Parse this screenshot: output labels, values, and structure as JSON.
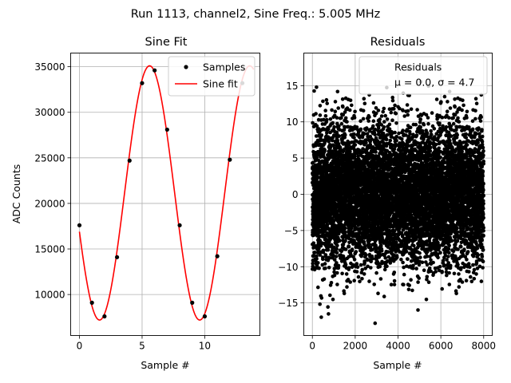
{
  "suptitle": "Run 1113, channel2, Sine Freq.: 5.005 MHz",
  "chart_data": [
    {
      "type": "line",
      "title": "Sine Fit",
      "xlabel": "Sample #",
      "ylabel": "ADC Counts",
      "xlim": [
        -0.7,
        14.4
      ],
      "ylim": [
        5500,
        36500
      ],
      "xticks": [
        0,
        5,
        10
      ],
      "yticks": [
        10000,
        15000,
        20000,
        25000,
        30000,
        35000
      ],
      "grid": true,
      "legend_placement": "top-right",
      "series": [
        {
          "name": "Samples",
          "kind": "points",
          "color": "#000000",
          "x": [
            0,
            1,
            2,
            3,
            4,
            5,
            6,
            7,
            8,
            9,
            10,
            11,
            12,
            13
          ],
          "y": [
            17600,
            9100,
            7600,
            14100,
            24700,
            33200,
            34600,
            28100,
            17600,
            9100,
            7600,
            14200,
            24800,
            33200
          ]
        },
        {
          "name": "Sine fit",
          "kind": "line",
          "color": "#ff0000",
          "model": {
            "offset": 21150,
            "amplitude": 13950,
            "period_samples": 7.992,
            "peak_x": 5.6
          },
          "x_range": [
            0,
            13.9
          ]
        }
      ]
    },
    {
      "type": "scatter",
      "title": "Residuals",
      "xlabel": "Sample #",
      "ylabel": "",
      "xlim": [
        -400,
        8400
      ],
      "ylim": [
        -19.5,
        19.5
      ],
      "xticks": [
        0,
        2000,
        4000,
        6000,
        8000
      ],
      "yticks": [
        -15,
        -10,
        -5,
        0,
        5,
        10,
        15
      ],
      "grid": true,
      "legend_placement": "top-right",
      "series": [
        {
          "name": "Residuals",
          "color": "#000000",
          "n_points": 8000,
          "x_range": [
            0,
            7999
          ],
          "mean": 0.0,
          "sigma": 4.7,
          "y_min": -17.8,
          "y_max": 17.3
        }
      ],
      "legend_lines": [
        "Residuals",
        "μ = 0.0, σ = 4.7"
      ]
    }
  ]
}
